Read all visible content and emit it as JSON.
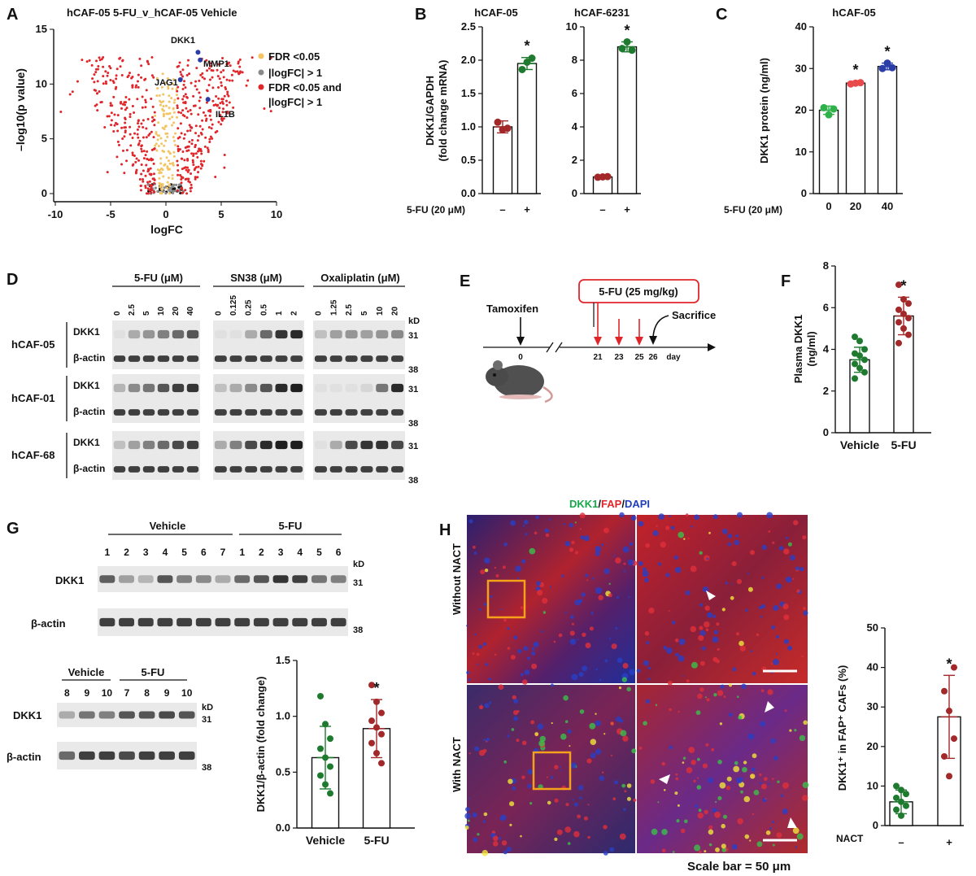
{
  "panels": {
    "A": {
      "letter": "A",
      "title": "hCAF-05 5-FU_v_hCAF-05 Vehicle",
      "legend": [
        "FDR <0.05",
        "|logFC| > 1",
        "FDR <0.05 and",
        "|logFC| > 1"
      ],
      "legend_colors": [
        "#f2c462",
        "#8a8a8a",
        "#e0262b"
      ],
      "genes": [
        "DKK1",
        "MMP1",
        "JAG1",
        "IL1B"
      ]
    },
    "B": {
      "letter": "B",
      "title_left": "hCAF-05",
      "title_right": "hCAF-6231",
      "treatment": "5-FU (20 μM)",
      "minus": "–",
      "plus": "+",
      "star": "*"
    },
    "C": {
      "letter": "C",
      "title": "hCAF-05",
      "treatment": "5-FU (20 μM)",
      "star": "*"
    },
    "D": {
      "letter": "D",
      "groups": [
        "5-FU (μM)",
        "SN38 (μM)",
        "Oxaliplatin (μM)"
      ],
      "conc_fu": [
        "0",
        "2.5",
        "5",
        "10",
        "20",
        "40"
      ],
      "conc_sn": [
        "0",
        "0.125",
        "0.25",
        "0.5",
        "1",
        "2"
      ],
      "conc_ox": [
        "0",
        "1.25",
        "2.5",
        "5",
        "10",
        "20"
      ],
      "lines": [
        "hCAF-05",
        "hCAF-01",
        "hCAF-68"
      ],
      "proteins": [
        "DKK1",
        "β-actin"
      ],
      "kd": "kD",
      "mw": [
        "31",
        "38"
      ]
    },
    "E": {
      "letter": "E",
      "drug": "5-FU (25 mg/kg)",
      "tamoxifen": "Tamoxifen",
      "sacrifice": "Sacrifice",
      "days": [
        "0",
        "21",
        "23",
        "25",
        "26"
      ],
      "day_unit": "day"
    },
    "F": {
      "letter": "F",
      "star": "*"
    },
    "G": {
      "letter": "G",
      "vehicle": "Vehicle",
      "fu": "5-FU",
      "lanes_top": [
        "1",
        "2",
        "3",
        "4",
        "5",
        "6",
        "7",
        "1",
        "2",
        "3",
        "4",
        "5",
        "6"
      ],
      "lanes_bottom": [
        "8",
        "9",
        "10",
        "7",
        "8",
        "9",
        "10"
      ],
      "proteins": [
        "DKK1",
        "β-actin"
      ],
      "kd": "kD",
      "mw": [
        "31",
        "38"
      ],
      "star": "*"
    },
    "H": {
      "letter": "H",
      "stain_title": [
        "DKK1",
        "/",
        "FAP",
        "/",
        "DAPI"
      ],
      "stain_colors": [
        "#18a84a",
        "#111111",
        "#e0262b",
        "#111111",
        "#1f3fbf"
      ],
      "rows": [
        "Without NACT",
        "With NACT"
      ],
      "scale": "Scale bar = 50 μm",
      "treatment": "NACT",
      "star": "*"
    }
  },
  "chart_data": [
    {
      "type": "scatter",
      "panel": "A",
      "xlabel": "logFC",
      "ylabel": "–log10(p value)",
      "xlim": [
        -10,
        10
      ],
      "ylim": [
        0,
        15
      ],
      "xticks": [
        -10,
        -5,
        0,
        5,
        10
      ],
      "yticks": [
        0,
        5,
        10,
        15
      ],
      "highlighted": [
        {
          "gene": "DKK1",
          "x": 2.9,
          "y": 12.9
        },
        {
          "gene": "MMP1",
          "x": 3.1,
          "y": 12.2
        },
        {
          "gene": "JAG1",
          "x": 1.3,
          "y": 10.4
        },
        {
          "gene": "IL1B",
          "x": 3.8,
          "y": 8.6
        }
      ]
    },
    {
      "type": "bar",
      "panel": "B-left",
      "title": "hCAF-05",
      "ylabel": "DKK1/GAPDH (fold change mRNA)",
      "categories": [
        "–",
        "+"
      ],
      "values": [
        1.0,
        1.95
      ],
      "errors": [
        0.09,
        0.09
      ],
      "points": [
        [
          1.07,
          0.96,
          0.98
        ],
        [
          1.86,
          1.97,
          2.03
        ]
      ],
      "ylim": [
        0,
        2.5
      ],
      "yticks": [
        0.0,
        0.5,
        1.0,
        1.5,
        2.0,
        2.5
      ],
      "colors": [
        "#a3282a",
        "#1e7a2e"
      ]
    },
    {
      "type": "bar",
      "panel": "B-right",
      "title": "hCAF-6231",
      "categories": [
        "–",
        "+"
      ],
      "values": [
        1.0,
        8.8
      ],
      "errors": [
        0.05,
        0.3
      ],
      "points": [
        [
          0.98,
          1.0,
          1.02
        ],
        [
          8.7,
          9.1,
          8.6
        ]
      ],
      "ylim": [
        0,
        10
      ],
      "yticks": [
        0,
        2,
        4,
        6,
        8,
        10
      ],
      "colors": [
        "#a3282a",
        "#1e7a2e"
      ]
    },
    {
      "type": "bar",
      "panel": "C",
      "title": "hCAF-05",
      "ylabel": "DKK1 protein (ng/ml)",
      "categories": [
        "0",
        "20",
        "40"
      ],
      "values": [
        20.0,
        26.5,
        30.5
      ],
      "errors": [
        1.0,
        0.4,
        0.8
      ],
      "points": [
        [
          20.6,
          18.9,
          20.3
        ],
        [
          26.3,
          26.5,
          26.6
        ],
        [
          30.0,
          31.3,
          30.2
        ]
      ],
      "ylim": [
        0,
        40
      ],
      "yticks": [
        0,
        10,
        20,
        30,
        40
      ],
      "colors": [
        "#2db34a",
        "#e8494a",
        "#2b3ea8"
      ]
    },
    {
      "type": "bar",
      "panel": "F",
      "ylabel": "Plasma DKK1 (ng/ml)",
      "categories": [
        "Vehicle",
        "5-FU"
      ],
      "values": [
        3.5,
        5.6
      ],
      "errors": [
        0.6,
        0.9
      ],
      "points": [
        [
          4.6,
          4.4,
          4.0,
          3.8,
          3.7,
          3.5,
          3.3,
          3.1,
          2.9,
          2.6
        ],
        [
          7.1,
          6.4,
          6.2,
          5.9,
          5.7,
          5.5,
          5.3,
          5.0,
          4.7,
          4.3
        ]
      ],
      "ylim": [
        0,
        8
      ],
      "yticks": [
        0,
        2,
        4,
        6,
        8
      ],
      "colors": [
        "#1e7a2e",
        "#a3282a"
      ]
    },
    {
      "type": "bar",
      "panel": "G",
      "ylabel": "DKK1/β-actin (fold change)",
      "categories": [
        "Vehicle",
        "5-FU"
      ],
      "values": [
        0.63,
        0.89
      ],
      "errors": [
        0.28,
        0.26
      ],
      "points": [
        [
          1.18,
          0.93,
          0.8,
          0.71,
          0.63,
          0.55,
          0.47,
          0.39,
          0.31
        ],
        [
          1.28,
          1.13,
          1.03,
          0.96,
          0.9,
          0.84,
          0.76,
          0.67,
          0.58
        ]
      ],
      "ylim": [
        0,
        1.5
      ],
      "yticks": [
        0.0,
        0.5,
        1.0,
        1.5
      ],
      "colors": [
        "#1e7a2e",
        "#a3282a"
      ]
    },
    {
      "type": "bar",
      "panel": "H",
      "ylabel": "DKK1⁺ in FAP⁺ CAFs (%)",
      "categories": [
        "–",
        "+"
      ],
      "values": [
        6.0,
        27.5
      ],
      "errors": [
        3.0,
        10.5
      ],
      "points": [
        [
          10.0,
          9.0,
          8.0,
          7.0,
          6.0,
          5.0,
          4.0,
          2.5
        ],
        [
          34.0,
          29.0,
          22.0,
          17.5,
          12.5,
          40.0
        ]
      ],
      "ylim": [
        0,
        50
      ],
      "yticks": [
        0,
        10,
        20,
        30,
        40,
        50
      ],
      "colors": [
        "#1e7a2e",
        "#a3282a"
      ]
    }
  ]
}
